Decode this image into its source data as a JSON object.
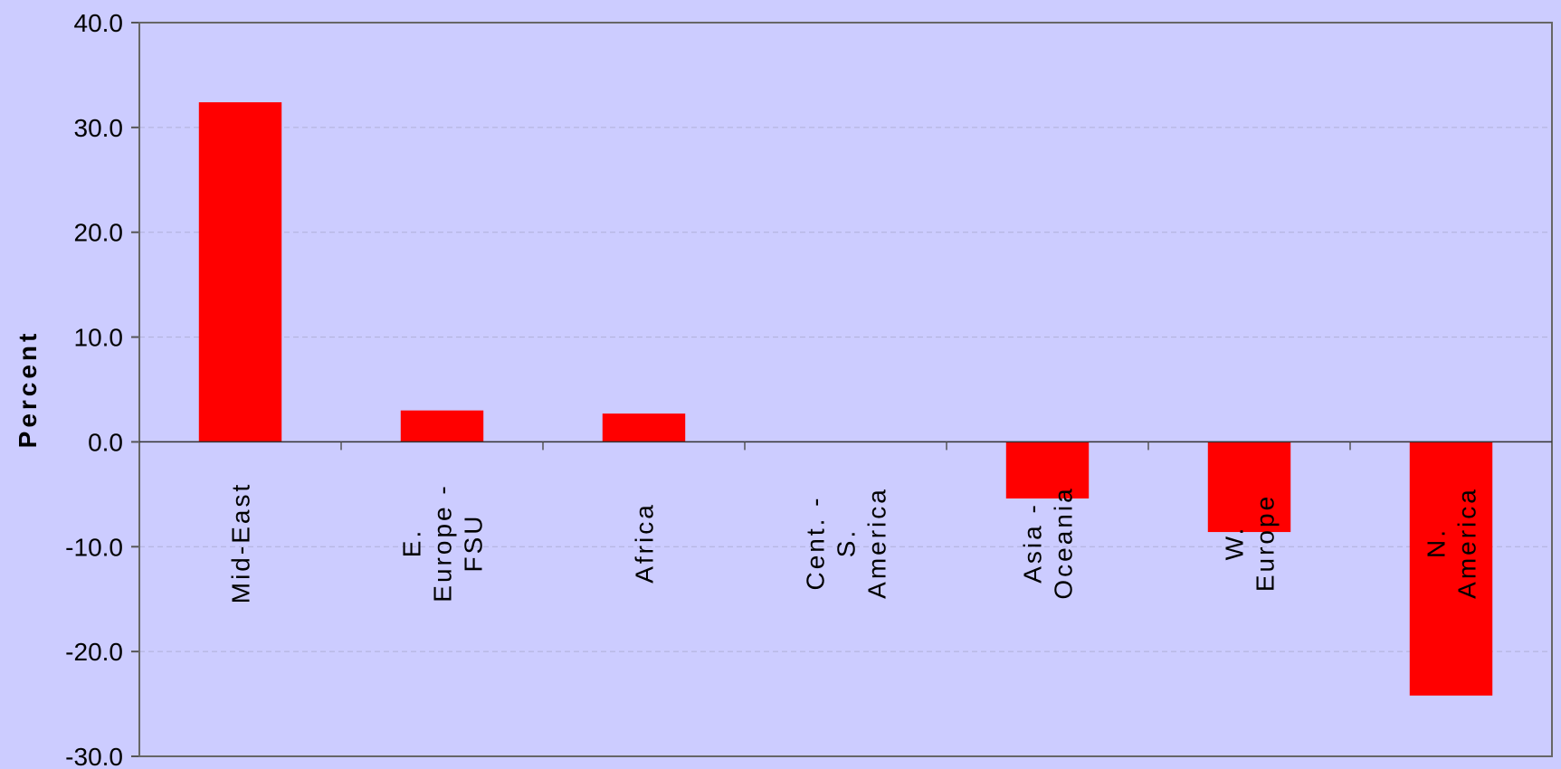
{
  "chart_data": {
    "type": "bar",
    "title": "",
    "xlabel": "",
    "ylabel": "Percent",
    "ylim": [
      -30,
      40
    ],
    "yticks": [
      "40.0",
      "30.0",
      "20.0",
      "10.0",
      "0.0",
      "-10.0",
      "-20.0",
      "-30.0"
    ],
    "categories": [
      [
        "Mid-East"
      ],
      [
        "E.",
        "Europe -",
        "FSU"
      ],
      [
        "Africa"
      ],
      [
        "Cent. -",
        "S.",
        "America"
      ],
      [
        "Asia -",
        "Oceania"
      ],
      [
        "W.",
        "Europe"
      ],
      [
        "N.",
        "America"
      ]
    ],
    "values": [
      32.4,
      3.0,
      2.7,
      0.0,
      -5.4,
      -8.6,
      -24.2
    ],
    "bar_color": "#ff0000",
    "background_color": "#ccccff",
    "grid": true
  }
}
